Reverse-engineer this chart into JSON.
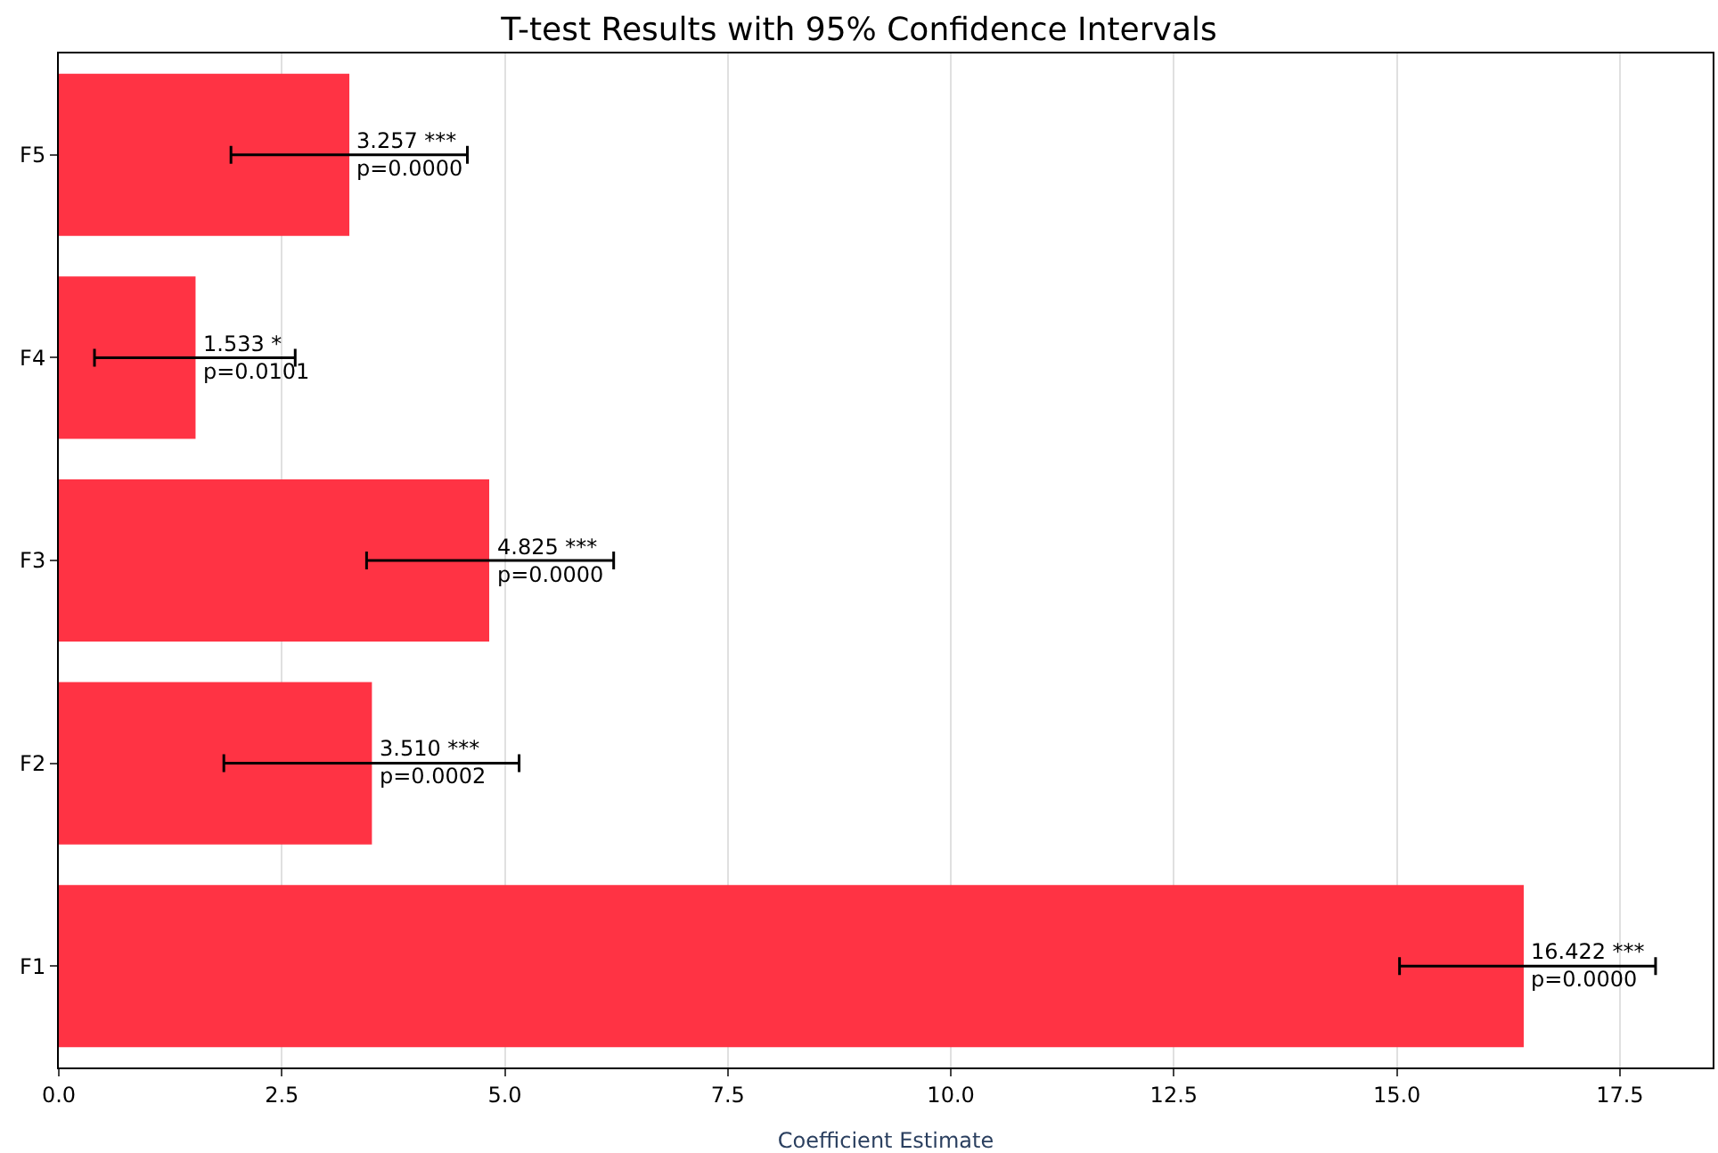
{
  "chart_data": {
    "type": "bar",
    "orientation": "horizontal",
    "title": "T-test Results with 95% Confidence Intervals",
    "xlabel": "Coefficient Estimate",
    "categories": [
      "F5",
      "F4",
      "F3",
      "F2",
      "F1"
    ],
    "values": [
      3.257,
      1.533,
      4.825,
      3.51,
      16.422
    ],
    "errors": [
      [
        1.93,
        4.58
      ],
      [
        0.4,
        2.65
      ],
      [
        3.45,
        6.22
      ],
      [
        1.85,
        5.16
      ],
      [
        15.03,
        17.9
      ]
    ],
    "value_labels": [
      "3.257 ***\np=0.0000",
      "1.533 *\np=0.0101",
      "4.825 ***\np=0.0000",
      "3.510 ***\np=0.0002",
      "16.422 ***\np=0.0000"
    ],
    "color": "#ff3344",
    "xlim": [
      0,
      18.54
    ],
    "xticks": [
      {
        "value": 0,
        "label": "0.0"
      },
      {
        "value": 2.5,
        "label": "2.5"
      },
      {
        "value": 5,
        "label": "5.0"
      },
      {
        "value": 7.5,
        "label": "7.5"
      },
      {
        "value": 10,
        "label": "10.0"
      },
      {
        "value": 12.5,
        "label": "12.5"
      },
      {
        "value": 15,
        "label": "15.0"
      },
      {
        "value": 17.5,
        "label": "17.5"
      }
    ],
    "grid": "x",
    "legend": false
  }
}
